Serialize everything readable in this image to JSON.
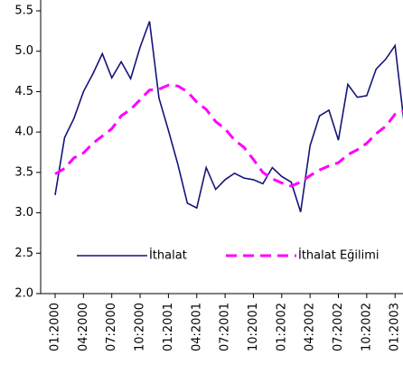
{
  "chart_data": {
    "type": "line",
    "categories": [
      "01:2000",
      null,
      null,
      "04:2000",
      null,
      null,
      "07:2000",
      null,
      null,
      "10:2000",
      null,
      null,
      "01:2001",
      null,
      null,
      "04:2001",
      null,
      null,
      "07:2001",
      null,
      null,
      "10:2001",
      null,
      null,
      "01:2002",
      null,
      null,
      "04:2002",
      null,
      null,
      "07:2002",
      null,
      null,
      "10:2002",
      null,
      null,
      "01:2003",
      null
    ],
    "series": [
      {
        "name": "İthalat",
        "color": "#14147a",
        "dashed": false,
        "values": [
          3.22,
          3.93,
          4.17,
          4.5,
          4.72,
          4.97,
          4.67,
          4.87,
          4.66,
          5.05,
          5.37,
          4.42,
          4.02,
          3.6,
          3.12,
          3.06,
          3.56,
          3.29,
          3.41,
          3.49,
          3.43,
          3.41,
          3.36,
          3.56,
          3.45,
          3.38,
          3.01,
          3.83,
          4.2,
          4.27,
          3.9,
          4.59,
          4.43,
          4.45,
          4.78,
          4.9,
          5.07,
          4.07
        ]
      },
      {
        "name": "İthalat Eğilimi",
        "color": "#ff00ff",
        "dashed": true,
        "values": [
          3.48,
          3.55,
          3.68,
          3.74,
          3.86,
          3.95,
          4.04,
          4.2,
          4.28,
          4.4,
          4.52,
          4.53,
          4.58,
          4.57,
          4.5,
          4.37,
          4.28,
          4.13,
          4.04,
          3.9,
          3.81,
          3.66,
          3.5,
          3.42,
          3.37,
          3.33,
          3.38,
          3.46,
          3.53,
          3.58,
          3.62,
          3.72,
          3.78,
          3.86,
          3.98,
          4.07,
          4.22,
          4.27
        ]
      }
    ],
    "ylim": [
      2.0,
      5.5
    ],
    "yticks": [
      {
        "value": 2.0,
        "label": "2.0"
      },
      {
        "value": 2.5,
        "label": "2.5"
      },
      {
        "value": 3.0,
        "label": "3.0"
      },
      {
        "value": 3.5,
        "label": "3.5"
      },
      {
        "value": 4.0,
        "label": "4.0"
      },
      {
        "value": 4.5,
        "label": "4.5"
      },
      {
        "value": 5.0,
        "label": "5.0"
      },
      {
        "value": 5.5,
        "label": "5.5"
      }
    ],
    "grid": false,
    "legend": "inside-bottom"
  }
}
